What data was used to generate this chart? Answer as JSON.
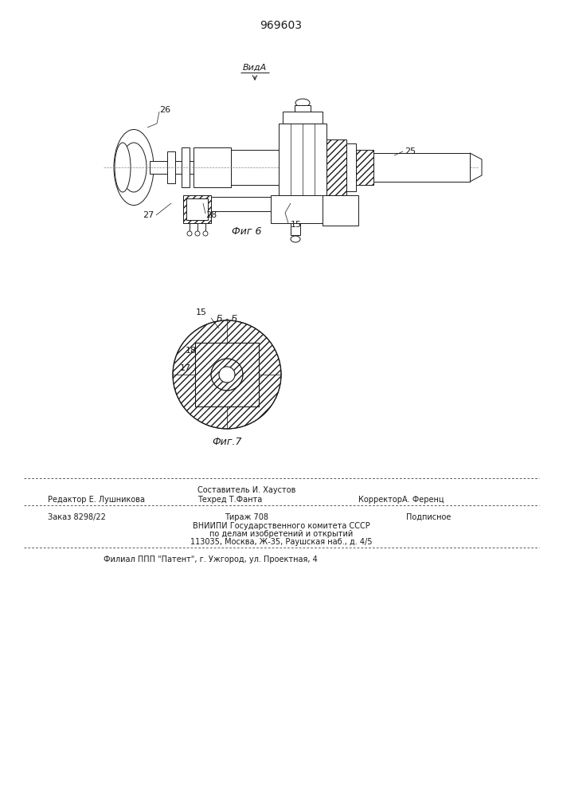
{
  "title": "969603",
  "fig6_label": "Фиг 6",
  "fig7_label": "Фиг.7",
  "vida_label": "ВидА",
  "bb_label": "Б - Б",
  "footer_editor": "Редактор Е. Лушникова",
  "footer_composer": "Составитель И. Хаустов",
  "footer_techred": "Техред Т.Фанта",
  "footer_corrector": "КорректорА. Ференц",
  "footer_order": "Заказ 8298/22",
  "footer_tirazh": "Тираж 708",
  "footer_podpisnoe": "Подписное",
  "footer_vniipи": "ВНИИПИ Государственного комитета СССР",
  "footer_po_delam": "по делам изобретений и открытий",
  "footer_address": "113035, Москва, Ж-35, Раушская наб., д. 4/5",
  "footer_filial": "Филиал ППП \"Патент\", г. Ужгород, ул. Проектная, 4",
  "bg_color": "#ffffff",
  "line_color": "#1a1a1a"
}
